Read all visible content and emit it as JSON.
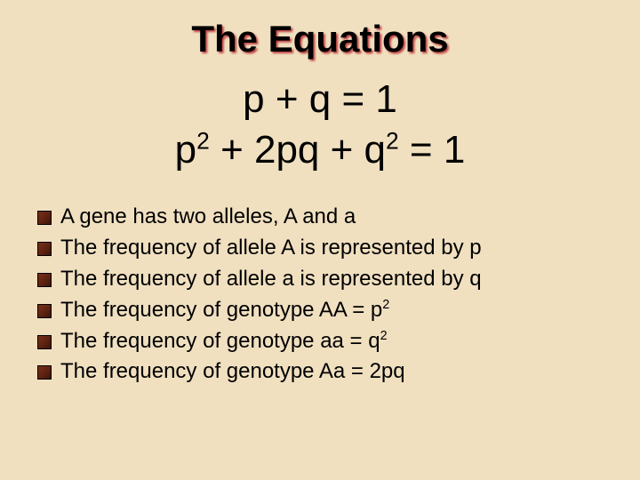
{
  "background_color": "#f0e0c0",
  "text_color": "#000000",
  "title_shadow_color": "#c04040",
  "bullet_color": "#6a2810",
  "font_family": "Comic Sans MS",
  "title": {
    "text": "The Equations",
    "fontsize": 42,
    "fontweight": "bold"
  },
  "equations": {
    "fontsize": 44,
    "line1_html": "p + q = 1",
    "line2_html": "p<sup>2</sup> + 2pq + q<sup>2</sup> = 1"
  },
  "bullets": {
    "fontsize": 24,
    "items": [
      {
        "html": "A gene has two alleles, A and a"
      },
      {
        "html": "The frequency of allele A is represented by p"
      },
      {
        "html": "The frequency of allele a is represented by q"
      },
      {
        "html": "The frequency of genotype AA = p<sup>2</sup>"
      },
      {
        "html": "The frequency of genotype aa = q<sup>2</sup>"
      },
      {
        "html": "The frequency of genotype Aa = 2pq"
      }
    ]
  }
}
